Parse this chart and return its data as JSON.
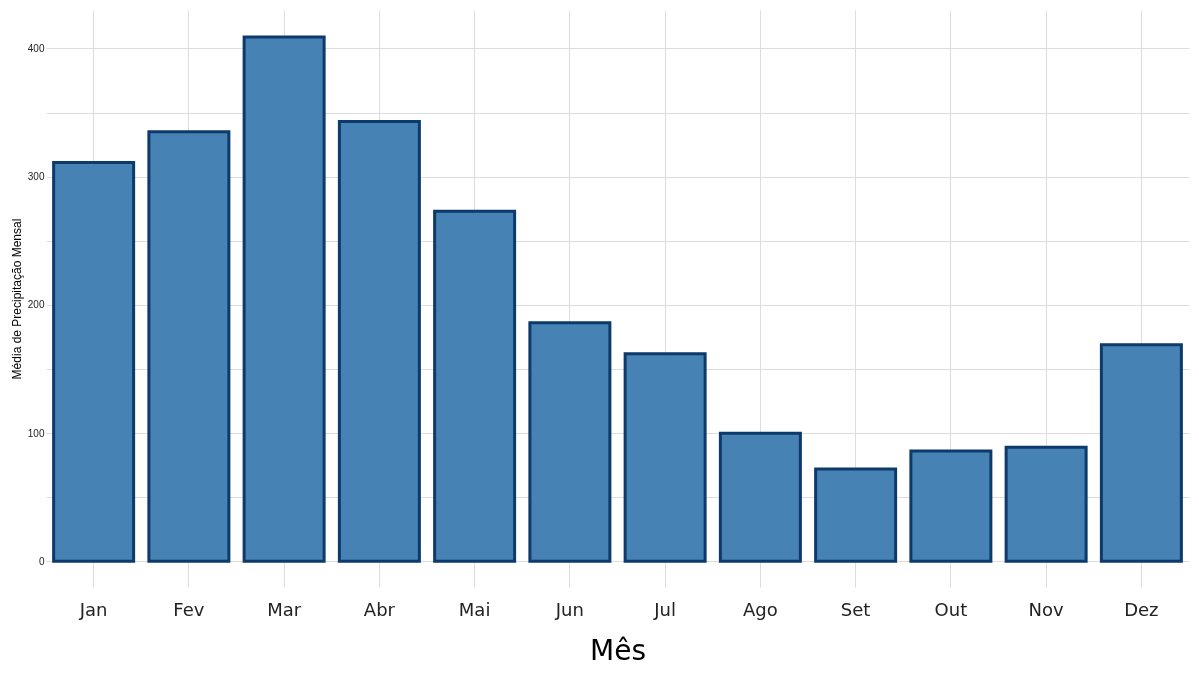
{
  "chart_data": {
    "type": "bar",
    "xlabel": "Mês",
    "ylabel": "Média de Precipitação Mensal",
    "categories": [
      "Jan",
      "Fev",
      "Mar",
      "Abr",
      "Mai",
      "Jun",
      "Jul",
      "Ago",
      "Set",
      "Out",
      "Nov",
      "Dez"
    ],
    "values": [
      311,
      335,
      409,
      343,
      273,
      186,
      162,
      100,
      72,
      86,
      89,
      169
    ],
    "color": "#4682b4",
    "ylim": [
      -20,
      430
    ],
    "yticks": [
      0,
      {
        "value": 50,
        "label": null
      },
      100,
      {
        "value": 150,
        "label": null
      },
      200,
      {
        "value": 250,
        "label": null
      },
      300,
      {
        "value": 350,
        "label": null
      },
      400
    ],
    "grid": true
  }
}
